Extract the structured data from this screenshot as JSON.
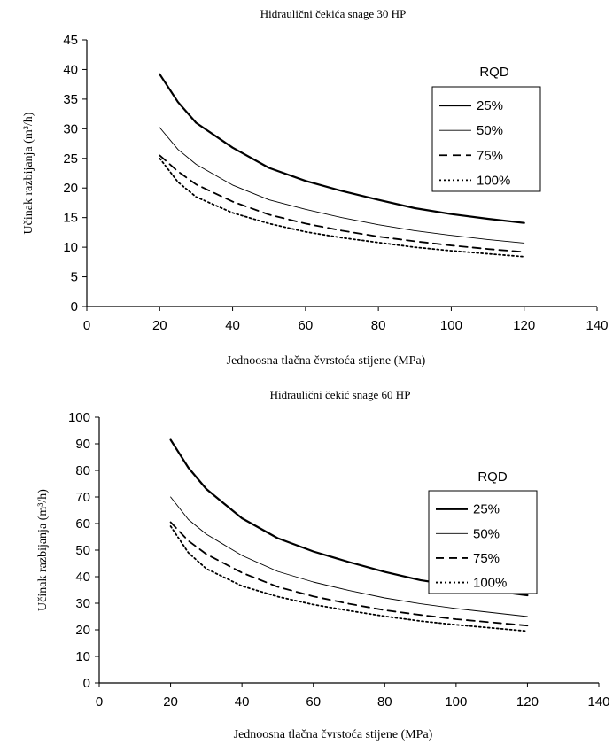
{
  "chart_data": [
    {
      "type": "line",
      "title": "Hidraulični čekića snage 30 HP",
      "xlabel": "Jednoosna tlačna čvrstoća stijene (MPa)",
      "ylabel": "Učinak razbijanja (m³/h)",
      "xlim": [
        0,
        140
      ],
      "ylim": [
        0,
        45
      ],
      "xticks": [
        0,
        20,
        40,
        60,
        80,
        100,
        120,
        140
      ],
      "yticks": [
        0,
        5,
        10,
        15,
        20,
        25,
        30,
        35,
        40,
        45
      ],
      "grid": false,
      "legend_title": "RQD",
      "legend_position": "top-right",
      "x": [
        20,
        25,
        30,
        40,
        50,
        60,
        70,
        80,
        90,
        100,
        110,
        120
      ],
      "series": [
        {
          "name": "25%",
          "style": "solid-thick",
          "values": [
            39.2,
            34.5,
            31.0,
            26.8,
            23.4,
            21.2,
            19.5,
            18.0,
            16.6,
            15.6,
            14.8,
            14.1
          ]
        },
        {
          "name": "50%",
          "style": "solid-thin",
          "values": [
            30.2,
            26.5,
            24.0,
            20.5,
            18.0,
            16.4,
            15.0,
            13.8,
            12.8,
            12.0,
            11.3,
            10.7
          ]
        },
        {
          "name": "75%",
          "style": "dashed",
          "values": [
            25.5,
            22.8,
            20.6,
            17.7,
            15.5,
            14.0,
            12.8,
            11.8,
            11.0,
            10.3,
            9.7,
            9.2
          ]
        },
        {
          "name": "100%",
          "style": "dotted",
          "values": [
            25.0,
            21.0,
            18.5,
            15.8,
            14.0,
            12.6,
            11.6,
            10.8,
            10.0,
            9.4,
            8.9,
            8.4
          ]
        }
      ]
    },
    {
      "type": "line",
      "title": "Hidraulični čekić snage 60 HP",
      "xlabel": "Jednoosna tlačna čvrstoća stijene (MPa)",
      "ylabel": "Učinak razbijanja (m³/h)",
      "xlim": [
        0,
        140
      ],
      "ylim": [
        0,
        100
      ],
      "xticks": [
        0,
        20,
        40,
        60,
        80,
        100,
        120,
        140
      ],
      "yticks": [
        0,
        10,
        20,
        30,
        40,
        50,
        60,
        70,
        80,
        90,
        100
      ],
      "grid": false,
      "legend_title": "RQD",
      "legend_position": "top-right",
      "x": [
        20,
        25,
        30,
        40,
        50,
        60,
        70,
        80,
        90,
        100,
        110,
        120
      ],
      "series": [
        {
          "name": "25%",
          "style": "solid-thick",
          "values": [
            91.5,
            81.0,
            73.0,
            62.0,
            54.5,
            49.5,
            45.5,
            41.8,
            38.7,
            36.6,
            34.7,
            33.0
          ]
        },
        {
          "name": "50%",
          "style": "solid-thin",
          "values": [
            70.0,
            61.5,
            56.0,
            48.0,
            42.0,
            38.0,
            34.8,
            32.0,
            29.8,
            28.0,
            26.5,
            25.0
          ]
        },
        {
          "name": "75%",
          "style": "dashed",
          "values": [
            60.5,
            53.5,
            48.5,
            41.5,
            36.2,
            32.6,
            29.8,
            27.4,
            25.6,
            24.0,
            22.8,
            21.6
          ]
        },
        {
          "name": "100%",
          "style": "dotted",
          "values": [
            59.0,
            49.0,
            43.0,
            36.5,
            32.5,
            29.5,
            27.2,
            25.1,
            23.3,
            21.9,
            20.7,
            19.5
          ]
        }
      ]
    }
  ]
}
